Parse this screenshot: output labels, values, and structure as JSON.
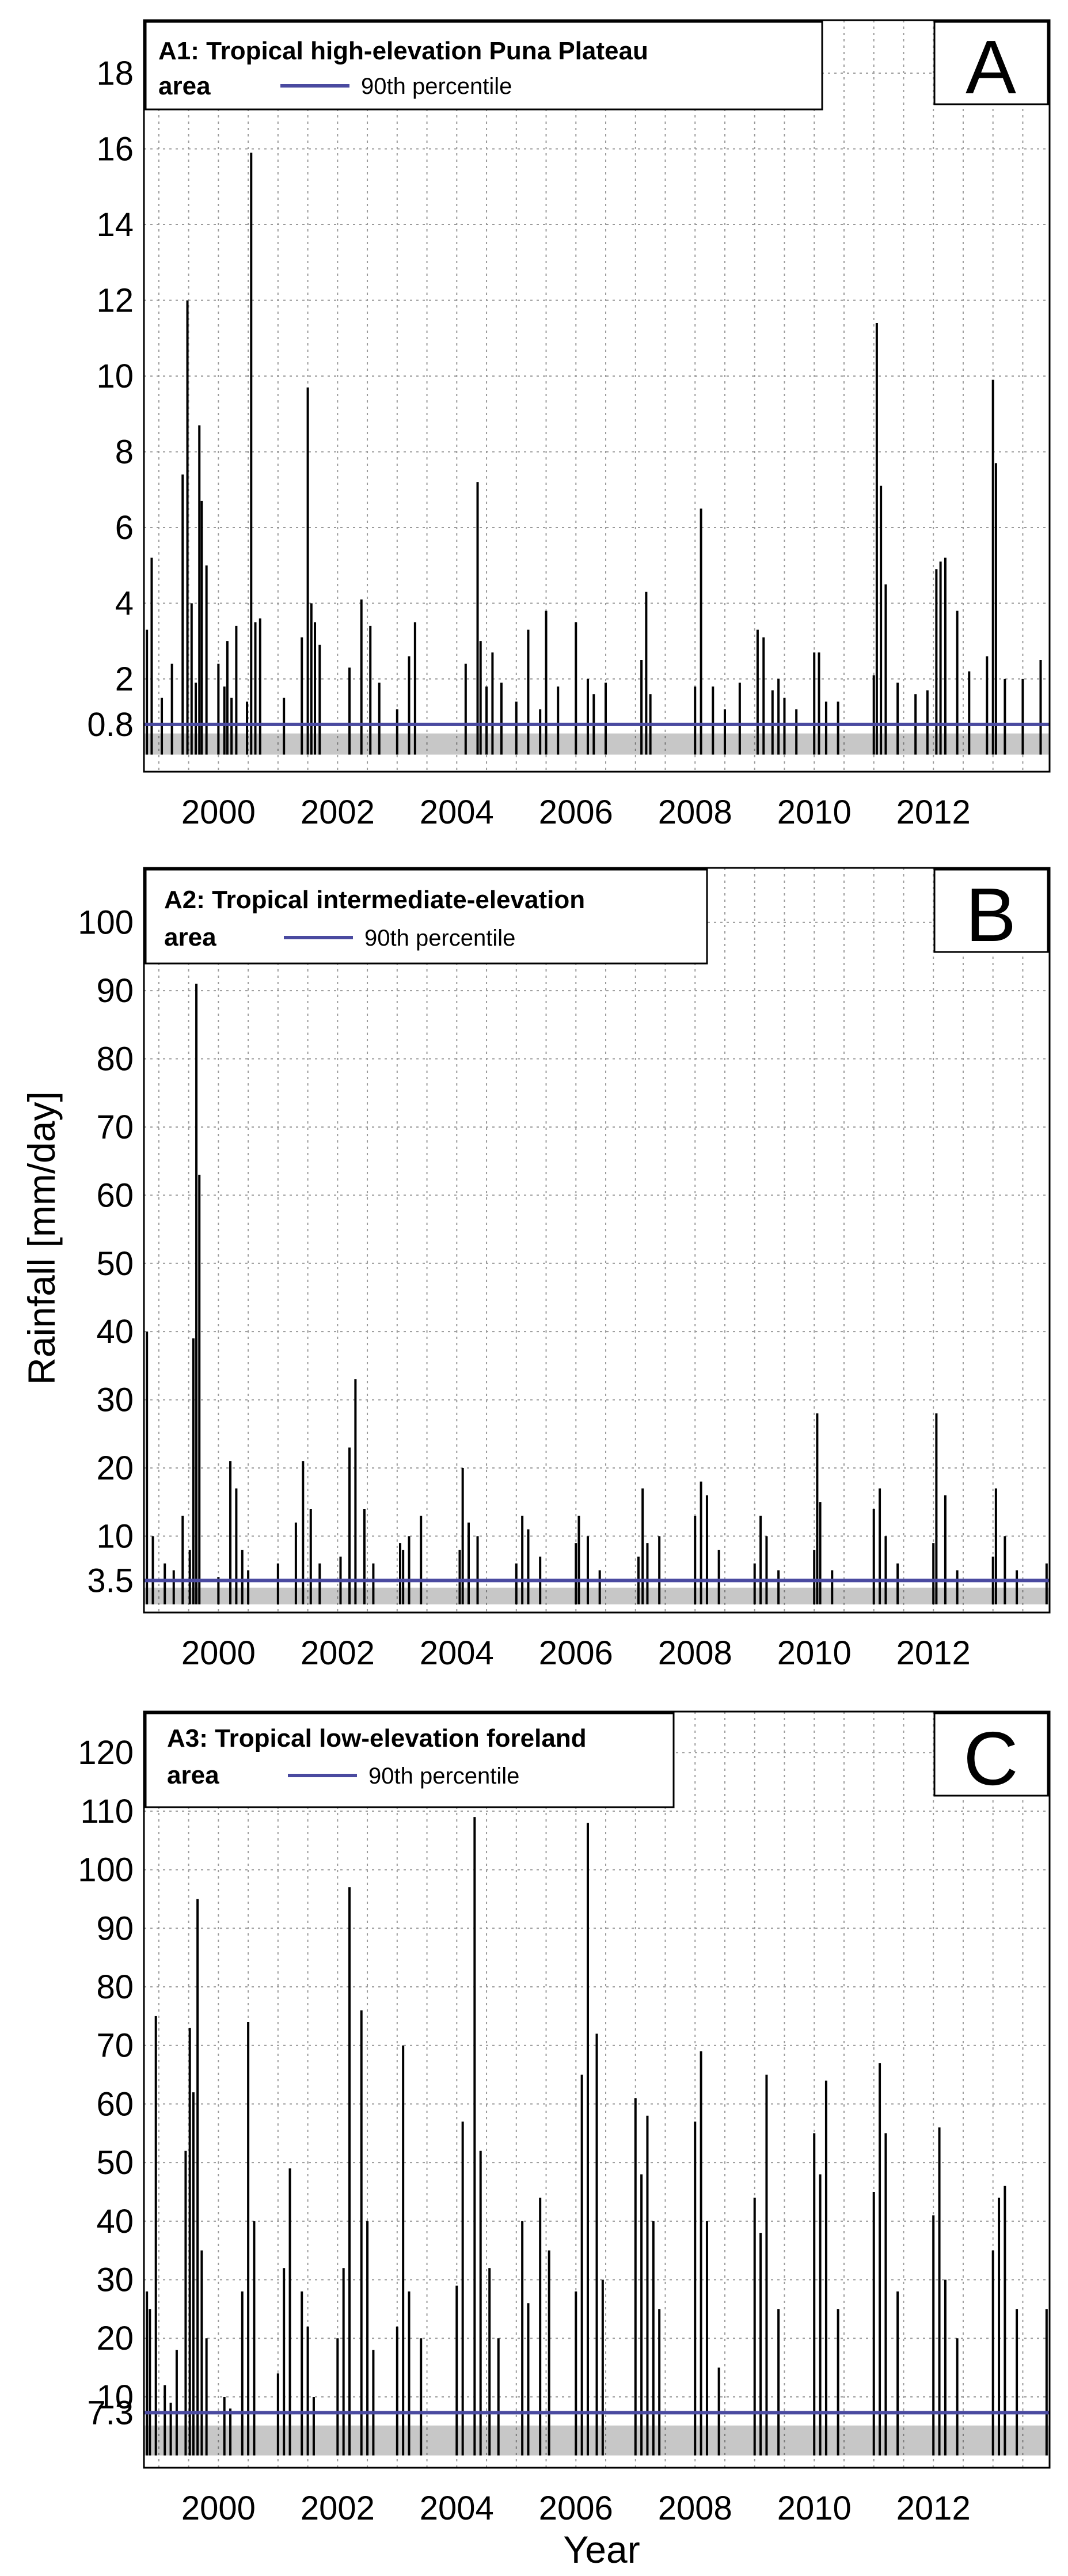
{
  "figure": {
    "ylabel": "Rainfall [mm/day]",
    "xlabel": "Year"
  },
  "colors": {
    "threshold": "#4a4aa0",
    "bars": "#000000",
    "grid": "#9a9a9a"
  },
  "chart_data": [
    {
      "type": "bar",
      "panel_letter": "A",
      "title": "A1: Tropical high-elevation Puna Plateau",
      "title_line2": "area",
      "legend_label": "90th percentile",
      "threshold": 0.8,
      "xlim": [
        1998.75,
        2013.95
      ],
      "ylim": [
        -0.45,
        19.4
      ],
      "ytick_values": [
        0.8,
        2,
        4,
        6,
        8,
        10,
        12,
        14,
        16,
        18
      ],
      "ytick_labels": [
        "0.8",
        "2",
        "4",
        "6",
        "8",
        "10",
        "12",
        "14",
        "16",
        "18"
      ],
      "ygrid": [
        2,
        4,
        6,
        8,
        10,
        12,
        14,
        16,
        18
      ],
      "xtick_labels": [
        "2000",
        "2002",
        "2004",
        "2006",
        "2008",
        "2010",
        "2012"
      ],
      "xtick_values": [
        2000,
        2002,
        2004,
        2006,
        2008,
        2010,
        2012
      ],
      "xgrid": [
        1999,
        1999.5,
        2000,
        2000.5,
        2001,
        2001.5,
        2002,
        2002.5,
        2003,
        2003.5,
        2004,
        2004.5,
        2005,
        2005.5,
        2006,
        2006.5,
        2007,
        2007.5,
        2008,
        2008.5,
        2009,
        2009.5,
        2010,
        2010.5,
        2011,
        2011.5,
        2012,
        2012.5,
        2013,
        2013.5
      ],
      "series": [
        {
          "name": "Daily rainfall",
          "x": [
            1998.8,
            1998.88,
            1999.05,
            1999.22,
            1999.4,
            1999.48,
            1999.55,
            1999.62,
            1999.68,
            1999.72,
            1999.8,
            2000.0,
            2000.1,
            2000.15,
            2000.22,
            2000.3,
            2000.48,
            2000.55,
            2000.62,
            2000.7,
            2001.1,
            2001.4,
            2001.5,
            2001.56,
            2001.62,
            2001.7,
            2002.2,
            2002.4,
            2002.55,
            2002.7,
            2003.0,
            2003.2,
            2003.3,
            2004.15,
            2004.35,
            2004.4,
            2004.5,
            2004.6,
            2004.75,
            2005.0,
            2005.2,
            2005.4,
            2005.5,
            2005.7,
            2006.0,
            2006.2,
            2006.3,
            2006.5,
            2007.1,
            2007.18,
            2007.25,
            2008.0,
            2008.1,
            2008.3,
            2008.5,
            2008.75,
            2009.05,
            2009.15,
            2009.3,
            2009.4,
            2009.5,
            2009.7,
            2010.0,
            2010.08,
            2010.2,
            2010.4,
            2011.0,
            2011.05,
            2011.12,
            2011.2,
            2011.4,
            2011.7,
            2011.9,
            2012.05,
            2012.12,
            2012.2,
            2012.4,
            2012.6,
            2012.9,
            2013.0,
            2013.05,
            2013.2,
            2013.5,
            2013.8
          ],
          "values": [
            3.3,
            5.2,
            1.5,
            2.4,
            7.4,
            12.0,
            4.0,
            1.9,
            8.7,
            6.7,
            5.0,
            2.4,
            1.8,
            3.0,
            1.5,
            3.4,
            1.4,
            15.9,
            3.5,
            3.6,
            1.5,
            3.1,
            9.7,
            4.0,
            3.5,
            2.9,
            2.3,
            4.1,
            3.4,
            1.9,
            1.2,
            2.6,
            3.5,
            2.4,
            7.2,
            3.0,
            1.8,
            2.7,
            1.9,
            1.4,
            3.3,
            1.2,
            3.8,
            1.8,
            3.5,
            2.0,
            1.6,
            1.9,
            2.5,
            4.3,
            1.6,
            1.8,
            6.5,
            1.8,
            1.2,
            1.9,
            3.3,
            3.1,
            1.7,
            2.0,
            1.5,
            1.2,
            2.7,
            2.7,
            1.4,
            1.4,
            2.1,
            11.4,
            7.1,
            4.5,
            1.9,
            1.6,
            1.7,
            4.9,
            5.1,
            5.2,
            3.8,
            2.2,
            2.6,
            9.9,
            7.7,
            2.0,
            2.0,
            2.5
          ]
        }
      ]
    },
    {
      "type": "bar",
      "panel_letter": "B",
      "title": "A2: Tropical intermediate-elevation",
      "title_line2": "area",
      "legend_label": "90th percentile",
      "threshold": 3.5,
      "xlim": [
        1998.75,
        2013.95
      ],
      "ylim": [
        -1.2,
        108
      ],
      "ytick_values": [
        3.5,
        10,
        20,
        30,
        40,
        50,
        60,
        70,
        80,
        90,
        100
      ],
      "ytick_labels": [
        "3.5",
        "10",
        "20",
        "30",
        "40",
        "50",
        "60",
        "70",
        "80",
        "90",
        "100"
      ],
      "ygrid": [
        10,
        20,
        30,
        40,
        50,
        60,
        70,
        80,
        90,
        100
      ],
      "xtick_labels": [
        "2000",
        "2002",
        "2004",
        "2006",
        "2008",
        "2010",
        "2012"
      ],
      "xtick_values": [
        2000,
        2002,
        2004,
        2006,
        2008,
        2010,
        2012
      ],
      "xgrid": [
        1999,
        1999.5,
        2000,
        2000.5,
        2001,
        2001.5,
        2002,
        2002.5,
        2003,
        2003.5,
        2004,
        2004.5,
        2005,
        2005.5,
        2006,
        2006.5,
        2007,
        2007.5,
        2008,
        2008.5,
        2009,
        2009.5,
        2010,
        2010.5,
        2011,
        2011.5,
        2012,
        2012.5,
        2013,
        2013.5
      ],
      "series": [
        {
          "name": "Daily rainfall",
          "x": [
            1998.8,
            1998.9,
            1999.1,
            1999.25,
            1999.4,
            1999.52,
            1999.58,
            1999.63,
            1999.68,
            2000.0,
            2000.2,
            2000.3,
            2000.4,
            2000.5,
            2001.0,
            2001.3,
            2001.42,
            2001.55,
            2001.7,
            2002.05,
            2002.2,
            2002.3,
            2002.45,
            2002.6,
            2003.05,
            2003.1,
            2003.2,
            2003.4,
            2004.05,
            2004.1,
            2004.2,
            2004.35,
            2005.0,
            2005.1,
            2005.2,
            2005.4,
            2006.0,
            2006.05,
            2006.2,
            2006.4,
            2007.05,
            2007.12,
            2007.2,
            2007.4,
            2008.0,
            2008.1,
            2008.2,
            2008.4,
            2009.0,
            2009.1,
            2009.2,
            2009.4,
            2010.0,
            2010.05,
            2010.1,
            2010.3,
            2011.0,
            2011.1,
            2011.2,
            2011.4,
            2012.0,
            2012.05,
            2012.2,
            2012.4,
            2013.0,
            2013.05,
            2013.2,
            2013.4,
            2013.9
          ],
          "values": [
            40.0,
            10.0,
            6.0,
            5.0,
            13.0,
            8.0,
            39.0,
            91.0,
            63.0,
            4.0,
            21.0,
            17.0,
            8.0,
            5.0,
            6.0,
            12.0,
            21.0,
            14.0,
            6.0,
            7.0,
            23.0,
            33.0,
            14.0,
            6.0,
            9.0,
            8.0,
            10.0,
            13.0,
            8.0,
            20.0,
            12.0,
            10.0,
            6.0,
            13.0,
            11.0,
            7.0,
            9.0,
            13.0,
            10.0,
            5.0,
            7.0,
            17.0,
            9.0,
            10.0,
            13.0,
            18.0,
            16.0,
            8.0,
            6.0,
            13.0,
            10.0,
            5.0,
            8.0,
            28.0,
            15.0,
            5.0,
            14.0,
            17.0,
            10.0,
            6.0,
            9.0,
            28.0,
            16.0,
            5.0,
            7.0,
            17.0,
            10.0,
            5.0,
            6.0
          ]
        }
      ]
    },
    {
      "type": "bar",
      "panel_letter": "C",
      "title": "A3: Tropical low-elevation foreland",
      "title_line2": "area",
      "legend_label": "90th percentile",
      "threshold": 7.3,
      "xlim": [
        1998.75,
        2013.95
      ],
      "ylim": [
        -2.1,
        127
      ],
      "ytick_values": [
        7.3,
        10,
        20,
        30,
        40,
        50,
        60,
        70,
        80,
        90,
        100,
        110,
        120
      ],
      "ytick_labels": [
        "7.3",
        "10",
        "20",
        "30",
        "40",
        "50",
        "60",
        "70",
        "80",
        "90",
        "100",
        "110",
        "120"
      ],
      "ygrid": [
        10,
        20,
        30,
        40,
        50,
        60,
        70,
        80,
        90,
        100,
        110,
        120
      ],
      "xtick_labels": [
        "2000",
        "2002",
        "2004",
        "2006",
        "2008",
        "2010",
        "2012"
      ],
      "xtick_values": [
        2000,
        2002,
        2004,
        2006,
        2008,
        2010,
        2012
      ],
      "xgrid": [
        1999,
        1999.5,
        2000,
        2000.5,
        2001,
        2001.5,
        2002,
        2002.5,
        2003,
        2003.5,
        2004,
        2004.5,
        2005,
        2005.5,
        2006,
        2006.5,
        2007,
        2007.5,
        2008,
        2008.5,
        2009,
        2009.5,
        2010,
        2010.5,
        2011,
        2011.5,
        2012,
        2012.5,
        2013,
        2013.5
      ],
      "series": [
        {
          "name": "Daily rainfall",
          "x": [
            1998.8,
            1998.85,
            1998.95,
            1999.1,
            1999.2,
            1999.3,
            1999.45,
            1999.52,
            1999.58,
            1999.65,
            1999.72,
            1999.8,
            2000.1,
            2000.2,
            2000.4,
            2000.5,
            2000.6,
            2001.0,
            2001.1,
            2001.2,
            2001.4,
            2001.5,
            2001.6,
            2002.0,
            2002.1,
            2002.2,
            2002.4,
            2002.5,
            2002.6,
            2003.0,
            2003.1,
            2003.2,
            2003.4,
            2004.0,
            2004.1,
            2004.3,
            2004.4,
            2004.55,
            2004.7,
            2005.1,
            2005.2,
            2005.4,
            2005.55,
            2006.0,
            2006.1,
            2006.2,
            2006.35,
            2006.45,
            2007.0,
            2007.1,
            2007.2,
            2007.3,
            2007.4,
            2008.0,
            2008.1,
            2008.2,
            2008.4,
            2009.0,
            2009.1,
            2009.2,
            2009.4,
            2010.0,
            2010.1,
            2010.2,
            2010.4,
            2011.0,
            2011.1,
            2011.2,
            2011.4,
            2012.0,
            2012.1,
            2012.2,
            2012.4,
            2013.0,
            2013.1,
            2013.2,
            2013.4,
            2013.9
          ],
          "values": [
            28.0,
            25.0,
            75.0,
            12.0,
            9.0,
            18.0,
            52.0,
            73.0,
            62.0,
            95.0,
            35.0,
            20.0,
            10.0,
            8.0,
            28.0,
            74.0,
            40.0,
            14.0,
            32.0,
            49.0,
            28.0,
            22.0,
            10.0,
            20.0,
            32.0,
            97.0,
            76.0,
            40.0,
            18.0,
            22.0,
            70.0,
            28.0,
            20.0,
            29.0,
            57.0,
            109.0,
            52.0,
            32.0,
            20.0,
            40.0,
            26.0,
            44.0,
            35.0,
            28.0,
            65.0,
            108.0,
            72.0,
            30.0,
            61.0,
            48.0,
            58.0,
            40.0,
            25.0,
            57.0,
            69.0,
            40.0,
            15.0,
            44.0,
            38.0,
            65.0,
            25.0,
            55.0,
            48.0,
            64.0,
            25.0,
            45.0,
            67.0,
            55.0,
            28.0,
            41.0,
            56.0,
            30.0,
            20.0,
            35.0,
            44.0,
            46.0,
            25.0,
            25.0
          ]
        }
      ]
    }
  ]
}
